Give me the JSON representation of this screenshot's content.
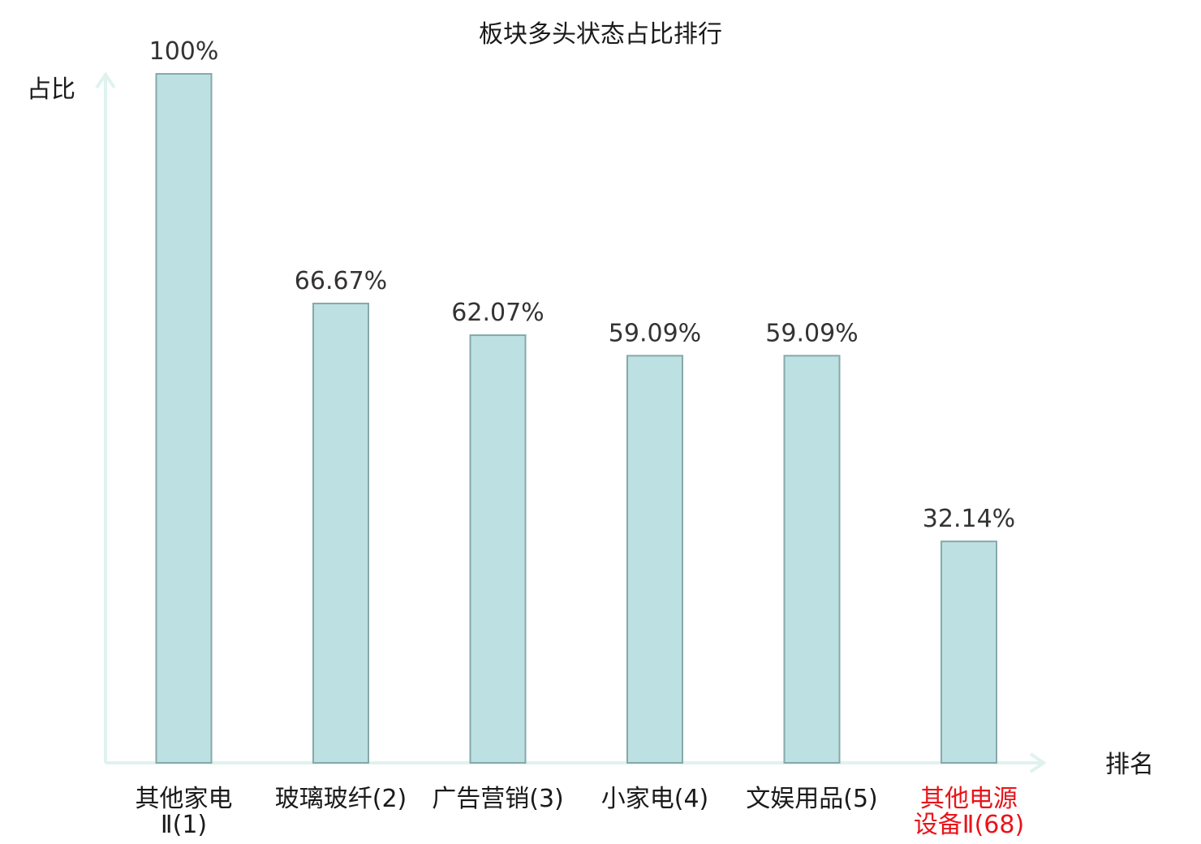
{
  "chart_data": {
    "type": "bar",
    "title": "板块多头状态占比排行",
    "ylabel": "占比",
    "xlabel": "排名",
    "ylim": [
      0,
      100
    ],
    "grid": false,
    "categories": [
      {
        "lines": [
          "其他家电",
          "Ⅱ(1)"
        ],
        "highlight": false
      },
      {
        "lines": [
          "玻璃玻纤(2)"
        ],
        "highlight": false
      },
      {
        "lines": [
          "广告营销(3)"
        ],
        "highlight": false
      },
      {
        "lines": [
          "小家电(4)"
        ],
        "highlight": false
      },
      {
        "lines": [
          "文娱用品(5)"
        ],
        "highlight": false
      },
      {
        "lines": [
          "其他电源",
          "设备Ⅱ(68)"
        ],
        "highlight": true
      }
    ],
    "values": [
      100,
      66.67,
      62.07,
      59.09,
      59.09,
      32.14
    ],
    "value_labels": [
      "100%",
      "66.67%",
      "62.07%",
      "59.09%",
      "59.09%",
      "32.14%"
    ],
    "colors": {
      "bar_fill": "#bde0e2",
      "bar_stroke": "#86a9ab",
      "axis": "#dff2ef",
      "label_normal": "#1a1a1a",
      "label_highlight": "#e8141a"
    }
  }
}
